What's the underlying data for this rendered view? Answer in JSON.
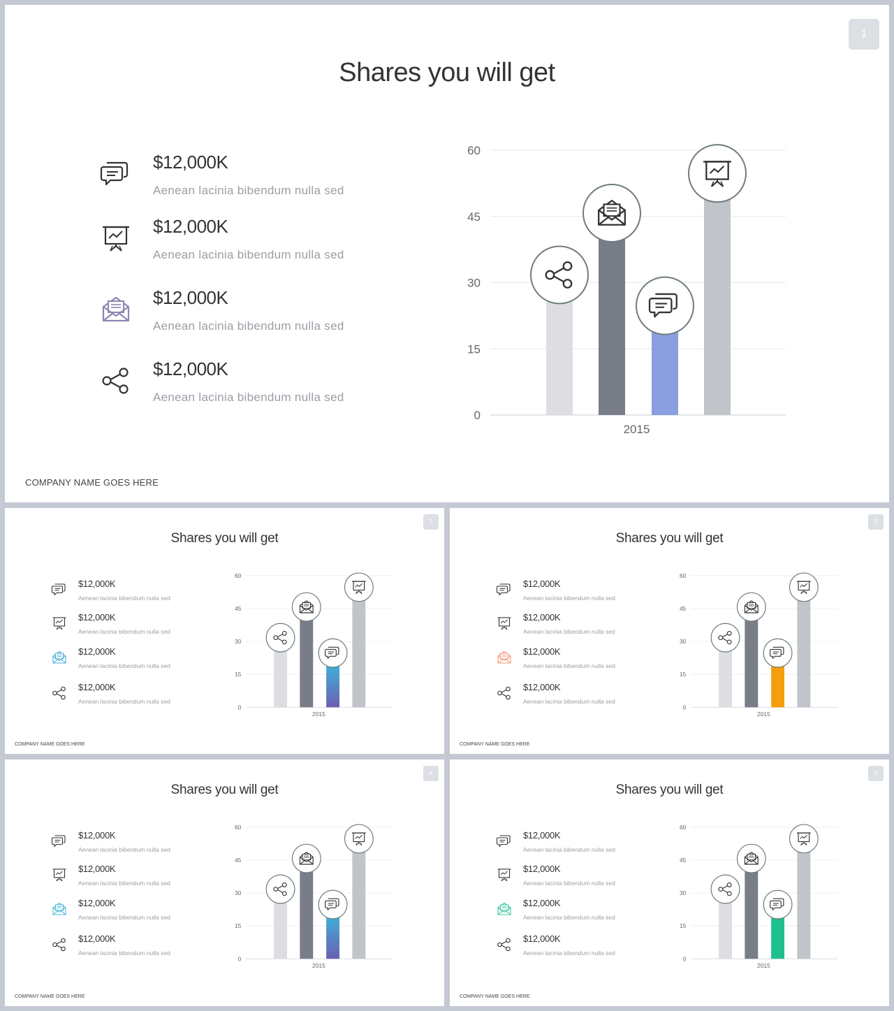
{
  "slides": [
    {
      "title": "Shares you will get",
      "number": "1",
      "company": "COMPANY NAME GOES HERE",
      "items": [
        {
          "value": "$12,000K",
          "desc": "Aenean lacinia bibendum nulla sed",
          "icon": "chat-icon"
        },
        {
          "value": "$12,000K",
          "desc": "Aenean lacinia bibendum nulla sed",
          "icon": "presentation-icon"
        },
        {
          "value": "$12,000K",
          "desc": "Aenean lacinia bibendum nulla sed",
          "icon": "mail-icon"
        },
        {
          "value": "$12,000K",
          "desc": "Aenean lacinia bibendum nulla sed",
          "icon": "share-icon"
        }
      ],
      "accent": "#8a9ee0",
      "accent_gradient": null,
      "mail_icon_color": "#8b87b3"
    },
    {
      "title": "Shares you will get",
      "number": "2",
      "company": "COMPANY NAME GOES HERE",
      "items": [
        {
          "value": "$12,000K",
          "desc": "Aenean lacinia bibendum nulla sed",
          "icon": "chat-icon"
        },
        {
          "value": "$12,000K",
          "desc": "Aenean lacinia bibendum nulla sed",
          "icon": "presentation-icon"
        },
        {
          "value": "$12,000K",
          "desc": "Aenean lacinia bibendum nulla sed",
          "icon": "mail-icon"
        },
        {
          "value": "$12,000K",
          "desc": "Aenean lacinia bibendum nulla sed",
          "icon": "share-icon"
        }
      ],
      "accent": "#4aa3d4",
      "accent_gradient": [
        "#3fb2dd",
        "#6a5fb0"
      ],
      "mail_icon_color": "#4aaed8"
    },
    {
      "title": "Shares you will get",
      "number": "3",
      "company": "COMPANY NAME GOES HERE",
      "items": [
        {
          "value": "$12,000K",
          "desc": "Aenean lacinia bibendum nulla sed",
          "icon": "chat-icon"
        },
        {
          "value": "$12,000K",
          "desc": "Aenean lacinia bibendum nulla sed",
          "icon": "presentation-icon"
        },
        {
          "value": "$12,000K",
          "desc": "Aenean lacinia bibendum nulla sed",
          "icon": "mail-icon"
        },
        {
          "value": "$12,000K",
          "desc": "Aenean lacinia bibendum nulla sed",
          "icon": "share-icon"
        }
      ],
      "accent": "#f59e0b",
      "accent_gradient": null,
      "mail_icon_color": "#f29a7a"
    },
    {
      "title": "Shares you will get",
      "number": "4",
      "company": "COMPANY NAME GOES HERE",
      "items": [
        {
          "value": "$12,000K",
          "desc": "Aenean lacinia bibendum nulla sed",
          "icon": "chat-icon"
        },
        {
          "value": "$12,000K",
          "desc": "Aenean lacinia bibendum nulla sed",
          "icon": "presentation-icon"
        },
        {
          "value": "$12,000K",
          "desc": "Aenean lacinia bibendum nulla sed",
          "icon": "mail-icon"
        },
        {
          "value": "$12,000K",
          "desc": "Aenean lacinia bibendum nulla sed",
          "icon": "share-icon"
        }
      ],
      "accent": "#4aa3d4",
      "accent_gradient": [
        "#3fb2dd",
        "#6a5fb0"
      ],
      "mail_icon_color": "#4ab8d8"
    },
    {
      "title": "Shares you will get",
      "number": "5",
      "company": "COMPANY NAME GOES HERE",
      "items": [
        {
          "value": "$12,000K",
          "desc": "Aenean lacinia bibendum nulla sed",
          "icon": "chat-icon"
        },
        {
          "value": "$12,000K",
          "desc": "Aenean lacinia bibendum nulla sed",
          "icon": "presentation-icon"
        },
        {
          "value": "$12,000K",
          "desc": "Aenean lacinia bibendum nulla sed",
          "icon": "mail-icon"
        },
        {
          "value": "$12,000K",
          "desc": "Aenean lacinia bibendum nulla sed",
          "icon": "share-icon"
        }
      ],
      "accent": "#1fbf8f",
      "accent_gradient": null,
      "mail_icon_color": "#3cc4a3"
    }
  ],
  "chart_data": {
    "type": "bar",
    "categories": [
      "2015"
    ],
    "series": [
      {
        "values": [
          27
        ],
        "color": "#dcdee1",
        "icon": "share-icon"
      },
      {
        "values": [
          41
        ],
        "color": "#797d88",
        "icon": "mail-icon"
      },
      {
        "values": [
          20
        ],
        "color": "accent",
        "icon": "chat-icon"
      },
      {
        "values": [
          50
        ],
        "color": "#c1c4c9",
        "icon": "presentation-icon"
      }
    ],
    "yticks": [
      "0",
      "15",
      "30",
      "45",
      "60"
    ],
    "ylim": [
      0,
      60
    ],
    "grid": true
  }
}
